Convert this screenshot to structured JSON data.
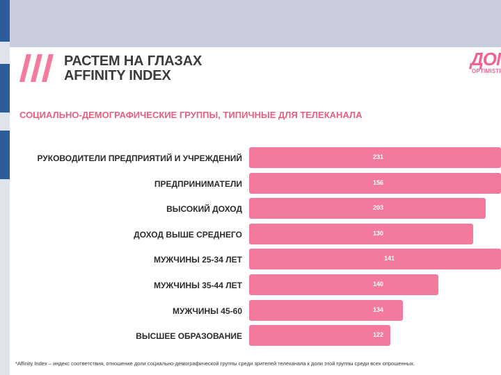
{
  "header": {
    "title_line1": "РАСТЕМ НА ГЛАЗАХ",
    "title_line2": "AFFINITY INDEX",
    "logo_text": "ДОМ",
    "logo_subtext": "OPTIMISTIC"
  },
  "subtitle": "СОЦИАЛЬНО-ДЕМОГРАФИЧЕСКИЕ ГРУППЫ, ТИПИЧНЫЕ ДЛЯ ТЕЛЕКАНАЛА",
  "colors": {
    "bar": "#f37a9c",
    "accent": "#e8607f",
    "top_band": "#c9cddd"
  },
  "chart_data": {
    "type": "bar",
    "orientation": "horizontal",
    "categories": [
      "РУКОВОДИТЕЛИ ПРЕДПРИЯТИЙ И УЧРЕЖДЕНИЙ",
      "ПРЕДПРИНИМАТЕЛИ",
      "ВЫСОКИЙ ДОХОД",
      "ДОХОД ВЫШЕ СРЕДНЕГО",
      "МУЖЧИНЫ 25-34 ЛЕТ",
      "МУЖЧИНЫ 35-44 ЛЕТ",
      "МУЖЧИНЫ 45-60",
      "ВЫСШЕЕ ОБРАЗОВАНИЕ"
    ],
    "value_labels": [
      "231",
      "156",
      "203",
      "130",
      "141",
      "140",
      "134",
      "122"
    ],
    "values": [
      231,
      156,
      203,
      130,
      141,
      140,
      134,
      122
    ],
    "bar_lengths": [
      1.0,
      1.0,
      0.94,
      0.89,
      1.0,
      0.75,
      0.61,
      0.56
    ]
  },
  "footnote": "*Affinity Index – индекс соответствия, отношение доли социально-демографической группы среди зрителей телеканала к доли этой группы среди всех опрошенных."
}
